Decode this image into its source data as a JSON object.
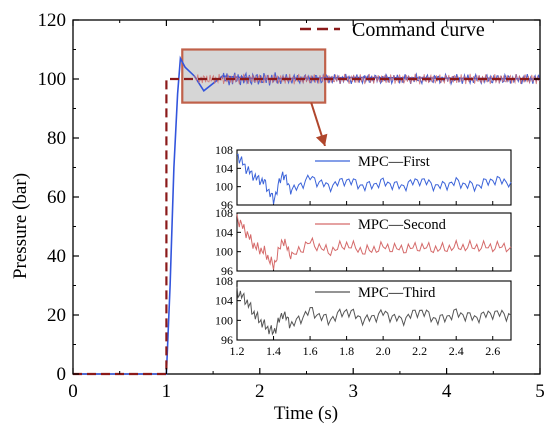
{
  "chart_data": {
    "type": "line",
    "xlabel": "Time (s)",
    "ylabel": "Pressure (bar)",
    "xlim": [
      0,
      5
    ],
    "ylim": [
      0,
      120
    ],
    "x_ticks": [
      "0",
      "1",
      "2",
      "3",
      "4",
      "5"
    ],
    "y_ticks": [
      "0",
      "20",
      "40",
      "60",
      "80",
      "100",
      "120"
    ],
    "grid": false,
    "legend_position": "top-right",
    "series": [
      {
        "name": "Command curve",
        "style": "dashed",
        "color": "#8B1A1A",
        "x": [
          0,
          1.0,
          1.0,
          5
        ],
        "y": [
          0,
          0,
          100,
          100
        ]
      },
      {
        "style": "solid",
        "color": "#3355dd",
        "description_points": {
          "x": [
            0,
            1.0,
            1.04,
            1.08,
            1.12,
            1.15,
            1.2,
            1.3,
            1.4,
            1.6,
            2.0,
            3.0,
            5.0
          ],
          "y": [
            0,
            0,
            30,
            70,
            95,
            107,
            104,
            101,
            96,
            101,
            100,
            100.5,
            100
          ]
        }
      }
    ],
    "zoom_box": {
      "x": [
        1.17,
        2.7
      ],
      "y": [
        92,
        110
      ]
    },
    "insets": [
      {
        "name": "MPC—First",
        "color": "#3b63d9",
        "x": [
          1.2,
          1.25,
          1.3,
          1.35,
          1.4,
          1.45,
          1.5,
          1.6,
          1.7,
          1.8,
          1.9,
          2.0,
          2.1,
          2.2,
          2.3,
          2.4,
          2.5,
          2.6,
          2.7
        ],
        "y": [
          107,
          104,
          102,
          101,
          97,
          103,
          99,
          102,
          100,
          101.5,
          100,
          101,
          100,
          101.5,
          100,
          101,
          100,
          101.5,
          101
        ]
      },
      {
        "name": "MPC—Second",
        "color": "#d56a6a",
        "x": [
          1.2,
          1.25,
          1.3,
          1.35,
          1.4,
          1.45,
          1.5,
          1.6,
          1.7,
          1.8,
          1.9,
          2.0,
          2.1,
          2.2,
          2.3,
          2.4,
          2.5,
          2.6,
          2.7
        ],
        "y": [
          107,
          104,
          101,
          100,
          97,
          102.5,
          99,
          102,
          100,
          101.5,
          100,
          101,
          100.5,
          101,
          100.5,
          101,
          101,
          101,
          101
        ]
      },
      {
        "name": "MPC—Third",
        "color": "#555555",
        "x": [
          1.2,
          1.25,
          1.3,
          1.35,
          1.4,
          1.45,
          1.5,
          1.6,
          1.7,
          1.8,
          1.9,
          2.0,
          2.1,
          2.2,
          2.3,
          2.4,
          2.5,
          2.6,
          2.7
        ],
        "y": [
          106,
          104,
          101,
          99,
          97.5,
          101.5,
          99,
          102,
          100,
          102,
          100,
          101.5,
          100,
          102,
          100,
          101.5,
          100.5,
          101.5,
          101
        ]
      }
    ],
    "inset_xlim": [
      1.2,
      2.7
    ],
    "inset_ylim": [
      96,
      108
    ],
    "inset_x_ticks": [
      "1.2",
      "1.4",
      "1.6",
      "1.8",
      "2.0",
      "2.2",
      "2.4",
      "2.6"
    ],
    "inset_y_ticks": [
      "96",
      "100",
      "104",
      "108"
    ]
  }
}
